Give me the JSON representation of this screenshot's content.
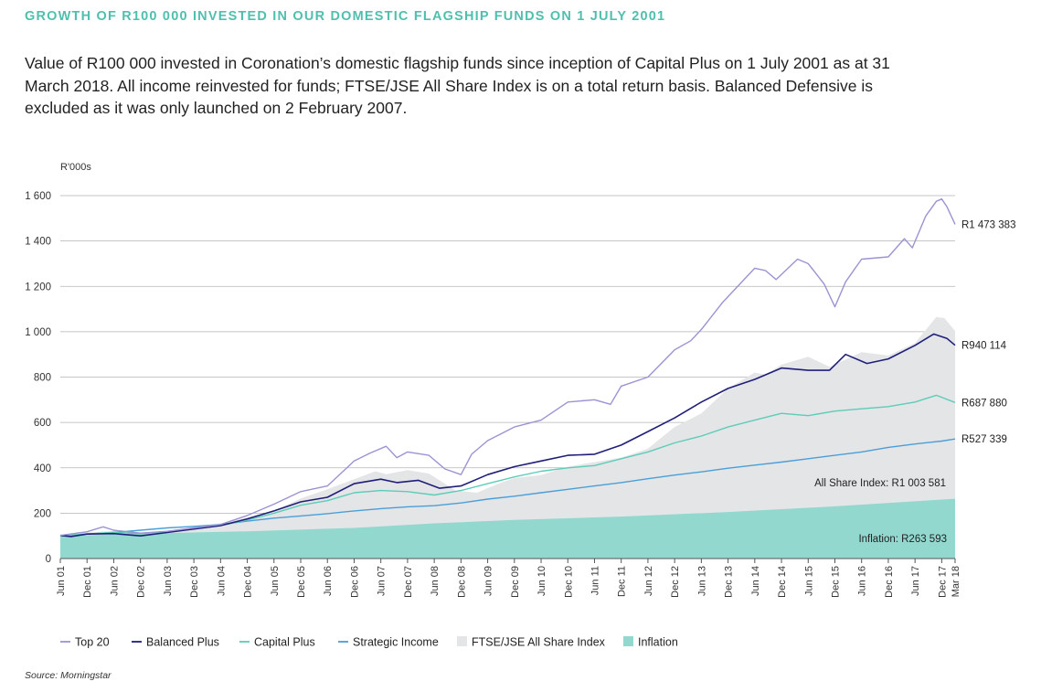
{
  "header": {
    "title": "GROWTH OF R100 000 INVESTED IN OUR DOMESTIC FLAGSHIP FUNDS ON 1 JULY 2001",
    "description": "Value of R100 000 invested in Coronation’s domestic flagship funds since inception of Capital Plus on 1 July 2001 as at 31 March 2018. All income reinvested for funds; FTSE/JSE All Share Index is on a total return basis. Balanced Defensive is excluded as it was only launched on 2 February 2007."
  },
  "footer": {
    "source": "Source: Morningstar"
  },
  "colors": {
    "top20": "#9b93d3",
    "balanced_plus": "#1f1f7a",
    "capital_plus": "#5dccb8",
    "strategic_income": "#4a9fd9",
    "alsi_fill": "#e4e5e7",
    "inflation_fill": "#93d8cf",
    "grid": "#b3b3b3"
  },
  "chart_data": {
    "type": "line",
    "ylabel": "R'000s",
    "ylim": [
      0,
      1600
    ],
    "yticks": [
      0,
      200,
      400,
      600,
      800,
      1000,
      1200,
      1400,
      1600
    ],
    "ytick_labels": [
      "0",
      "200",
      "400",
      "600",
      "800",
      "1 000",
      "1 200",
      "1 400",
      "1 600"
    ],
    "xlim": [
      2001.5,
      2018.25
    ],
    "xticks": [
      {
        "label": "Jun 01",
        "x": 2001.5
      },
      {
        "label": "Dec 01",
        "x": 2002.0
      },
      {
        "label": "Jun 02",
        "x": 2002.5
      },
      {
        "label": "Dec 02",
        "x": 2003.0
      },
      {
        "label": "Jun 03",
        "x": 2003.5
      },
      {
        "label": "Dec 03",
        "x": 2004.0
      },
      {
        "label": "Jun 04",
        "x": 2004.5
      },
      {
        "label": "Dec 04",
        "x": 2005.0
      },
      {
        "label": "Jun 05",
        "x": 2005.5
      },
      {
        "label": "Dec 05",
        "x": 2006.0
      },
      {
        "label": "Jun 06",
        "x": 2006.5
      },
      {
        "label": "Dec 06",
        "x": 2007.0
      },
      {
        "label": "Jun 07",
        "x": 2007.5
      },
      {
        "label": "Dec 07",
        "x": 2008.0
      },
      {
        "label": "Jun 08",
        "x": 2008.5
      },
      {
        "label": "Dec 08",
        "x": 2009.0
      },
      {
        "label": "Jun 09",
        "x": 2009.5
      },
      {
        "label": "Dec 09",
        "x": 2010.0
      },
      {
        "label": "Jun 10",
        "x": 2010.5
      },
      {
        "label": "Dec 10",
        "x": 2011.0
      },
      {
        "label": "Jun 11",
        "x": 2011.5
      },
      {
        "label": "Dec 11",
        "x": 2012.0
      },
      {
        "label": "Jun 12",
        "x": 2012.5
      },
      {
        "label": "Dec 12",
        "x": 2013.0
      },
      {
        "label": "Jun 13",
        "x": 2013.5
      },
      {
        "label": "Dec 13",
        "x": 2014.0
      },
      {
        "label": "Jun 14",
        "x": 2014.5
      },
      {
        "label": "Dec 14",
        "x": 2015.0
      },
      {
        "label": "Jun 15",
        "x": 2015.5
      },
      {
        "label": "Dec 15",
        "x": 2016.0
      },
      {
        "label": "Jun 16",
        "x": 2016.5
      },
      {
        "label": "Dec 16",
        "x": 2017.0
      },
      {
        "label": "Jun 17",
        "x": 2017.5
      },
      {
        "label": "Dec 17",
        "x": 2018.0
      },
      {
        "label": "Mar 18",
        "x": 2018.25
      }
    ],
    "legend_position": "bottom",
    "grid": true,
    "series": [
      {
        "key": "alsi",
        "name": "FTSE/JSE All Share Index",
        "style": "area",
        "end_label": "All Share Index: R1 003 581",
        "points": [
          [
            2001.5,
            105
          ],
          [
            2002.0,
            115
          ],
          [
            2002.5,
            122
          ],
          [
            2003.0,
            112
          ],
          [
            2003.5,
            120
          ],
          [
            2004.0,
            140
          ],
          [
            2004.5,
            155
          ],
          [
            2005.0,
            180
          ],
          [
            2005.5,
            210
          ],
          [
            2006.0,
            265
          ],
          [
            2006.5,
            305
          ],
          [
            2007.0,
            350
          ],
          [
            2007.4,
            385
          ],
          [
            2007.6,
            372
          ],
          [
            2008.0,
            390
          ],
          [
            2008.4,
            375
          ],
          [
            2008.9,
            300
          ],
          [
            2009.3,
            290
          ],
          [
            2009.7,
            330
          ],
          [
            2010.0,
            355
          ],
          [
            2010.5,
            368
          ],
          [
            2011.0,
            405
          ],
          [
            2011.5,
            425
          ],
          [
            2012.0,
            445
          ],
          [
            2012.5,
            485
          ],
          [
            2013.0,
            580
          ],
          [
            2013.5,
            640
          ],
          [
            2014.0,
            750
          ],
          [
            2014.5,
            820
          ],
          [
            2014.7,
            810
          ],
          [
            2015.0,
            855
          ],
          [
            2015.5,
            890
          ],
          [
            2015.9,
            845
          ],
          [
            2016.5,
            910
          ],
          [
            2017.0,
            895
          ],
          [
            2017.5,
            950
          ],
          [
            2017.9,
            1065
          ],
          [
            2018.05,
            1060
          ],
          [
            2018.25,
            1003.6
          ]
        ]
      },
      {
        "key": "inflation",
        "name": "Inflation",
        "style": "area",
        "end_label": "Inflation: R263 593",
        "points": [
          [
            2001.5,
            100
          ],
          [
            2003.0,
            110
          ],
          [
            2005.0,
            120
          ],
          [
            2007.0,
            135
          ],
          [
            2008.5,
            155
          ],
          [
            2010.0,
            170
          ],
          [
            2012.0,
            185
          ],
          [
            2014.0,
            205
          ],
          [
            2016.0,
            230
          ],
          [
            2018.25,
            263.6
          ]
        ]
      },
      {
        "key": "top20",
        "name": "Top 20",
        "style": "line",
        "end_label": "R1 473 383",
        "points": [
          [
            2001.5,
            102
          ],
          [
            2002.0,
            118
          ],
          [
            2002.3,
            140
          ],
          [
            2002.5,
            125
          ],
          [
            2003.0,
            112
          ],
          [
            2003.5,
            120
          ],
          [
            2004.0,
            135
          ],
          [
            2004.5,
            150
          ],
          [
            2005.0,
            190
          ],
          [
            2005.5,
            240
          ],
          [
            2006.0,
            295
          ],
          [
            2006.5,
            320
          ],
          [
            2007.0,
            430
          ],
          [
            2007.3,
            465
          ],
          [
            2007.6,
            495
          ],
          [
            2007.8,
            445
          ],
          [
            2008.0,
            470
          ],
          [
            2008.4,
            455
          ],
          [
            2008.7,
            395
          ],
          [
            2009.0,
            370
          ],
          [
            2009.2,
            460
          ],
          [
            2009.5,
            520
          ],
          [
            2010.0,
            580
          ],
          [
            2010.5,
            610
          ],
          [
            2011.0,
            690
          ],
          [
            2011.5,
            700
          ],
          [
            2011.8,
            680
          ],
          [
            2012.0,
            760
          ],
          [
            2012.5,
            800
          ],
          [
            2013.0,
            920
          ],
          [
            2013.3,
            960
          ],
          [
            2013.5,
            1010
          ],
          [
            2013.9,
            1130
          ],
          [
            2014.5,
            1280
          ],
          [
            2014.7,
            1270
          ],
          [
            2014.9,
            1230
          ],
          [
            2015.3,
            1320
          ],
          [
            2015.5,
            1300
          ],
          [
            2015.8,
            1210
          ],
          [
            2016.0,
            1110
          ],
          [
            2016.2,
            1220
          ],
          [
            2016.5,
            1320
          ],
          [
            2017.0,
            1330
          ],
          [
            2017.3,
            1410
          ],
          [
            2017.45,
            1370
          ],
          [
            2017.7,
            1510
          ],
          [
            2017.9,
            1575
          ],
          [
            2018.0,
            1585
          ],
          [
            2018.1,
            1550
          ],
          [
            2018.25,
            1473.4
          ]
        ]
      },
      {
        "key": "balanced_plus",
        "name": "Balanced Plus",
        "style": "line",
        "end_label": "R940 114",
        "points": [
          [
            2001.5,
            102
          ],
          [
            2001.7,
            97
          ],
          [
            2002.0,
            108
          ],
          [
            2002.5,
            110
          ],
          [
            2003.0,
            100
          ],
          [
            2003.5,
            115
          ],
          [
            2004.0,
            130
          ],
          [
            2004.5,
            145
          ],
          [
            2005.0,
            175
          ],
          [
            2005.5,
            210
          ],
          [
            2006.0,
            250
          ],
          [
            2006.5,
            270
          ],
          [
            2007.0,
            330
          ],
          [
            2007.5,
            350
          ],
          [
            2007.8,
            335
          ],
          [
            2008.2,
            345
          ],
          [
            2008.6,
            310
          ],
          [
            2009.0,
            320
          ],
          [
            2009.5,
            370
          ],
          [
            2010.0,
            405
          ],
          [
            2010.5,
            430
          ],
          [
            2011.0,
            455
          ],
          [
            2011.5,
            460
          ],
          [
            2012.0,
            500
          ],
          [
            2012.5,
            560
          ],
          [
            2013.0,
            620
          ],
          [
            2013.5,
            690
          ],
          [
            2014.0,
            750
          ],
          [
            2014.5,
            790
          ],
          [
            2015.0,
            840
          ],
          [
            2015.5,
            830
          ],
          [
            2015.9,
            830
          ],
          [
            2016.2,
            900
          ],
          [
            2016.6,
            860
          ],
          [
            2017.0,
            880
          ],
          [
            2017.5,
            940
          ],
          [
            2017.85,
            990
          ],
          [
            2018.1,
            970
          ],
          [
            2018.25,
            940.1
          ]
        ]
      },
      {
        "key": "capital_plus",
        "name": "Capital Plus",
        "style": "line",
        "end_label": "R687 880",
        "points": [
          [
            2001.5,
            100
          ],
          [
            2002.0,
            108
          ],
          [
            2002.5,
            115
          ],
          [
            2003.0,
            110
          ],
          [
            2003.5,
            118
          ],
          [
            2004.0,
            130
          ],
          [
            2004.5,
            145
          ],
          [
            2005.0,
            170
          ],
          [
            2005.5,
            200
          ],
          [
            2006.0,
            235
          ],
          [
            2006.5,
            255
          ],
          [
            2007.0,
            290
          ],
          [
            2007.5,
            300
          ],
          [
            2008.0,
            295
          ],
          [
            2008.5,
            280
          ],
          [
            2009.0,
            300
          ],
          [
            2009.5,
            330
          ],
          [
            2010.0,
            360
          ],
          [
            2010.5,
            385
          ],
          [
            2011.0,
            400
          ],
          [
            2011.5,
            410
          ],
          [
            2012.0,
            440
          ],
          [
            2012.5,
            470
          ],
          [
            2013.0,
            510
          ],
          [
            2013.5,
            540
          ],
          [
            2014.0,
            580
          ],
          [
            2014.5,
            610
          ],
          [
            2015.0,
            640
          ],
          [
            2015.5,
            630
          ],
          [
            2016.0,
            650
          ],
          [
            2016.5,
            660
          ],
          [
            2017.0,
            670
          ],
          [
            2017.5,
            690
          ],
          [
            2017.9,
            720
          ],
          [
            2018.25,
            687.9
          ]
        ]
      },
      {
        "key": "strategic_income",
        "name": "Strategic Income",
        "style": "line",
        "end_label": "R527 339",
        "points": [
          [
            2001.5,
            100
          ],
          [
            2002.0,
            108
          ],
          [
            2002.5,
            115
          ],
          [
            2003.0,
            125
          ],
          [
            2003.5,
            135
          ],
          [
            2004.0,
            142
          ],
          [
            2004.5,
            150
          ],
          [
            2005.0,
            165
          ],
          [
            2005.5,
            178
          ],
          [
            2006.0,
            188
          ],
          [
            2006.5,
            198
          ],
          [
            2007.0,
            210
          ],
          [
            2007.5,
            220
          ],
          [
            2008.0,
            228
          ],
          [
            2008.5,
            233
          ],
          [
            2009.0,
            245
          ],
          [
            2009.5,
            262
          ],
          [
            2010.0,
            275
          ],
          [
            2010.5,
            290
          ],
          [
            2011.0,
            305
          ],
          [
            2011.5,
            320
          ],
          [
            2012.0,
            335
          ],
          [
            2012.5,
            352
          ],
          [
            2013.0,
            368
          ],
          [
            2013.5,
            382
          ],
          [
            2014.0,
            398
          ],
          [
            2014.5,
            412
          ],
          [
            2015.0,
            425
          ],
          [
            2015.5,
            440
          ],
          [
            2016.0,
            455
          ],
          [
            2016.5,
            470
          ],
          [
            2017.0,
            490
          ],
          [
            2017.5,
            505
          ],
          [
            2018.0,
            518
          ],
          [
            2018.25,
            527.3
          ]
        ]
      }
    ]
  }
}
